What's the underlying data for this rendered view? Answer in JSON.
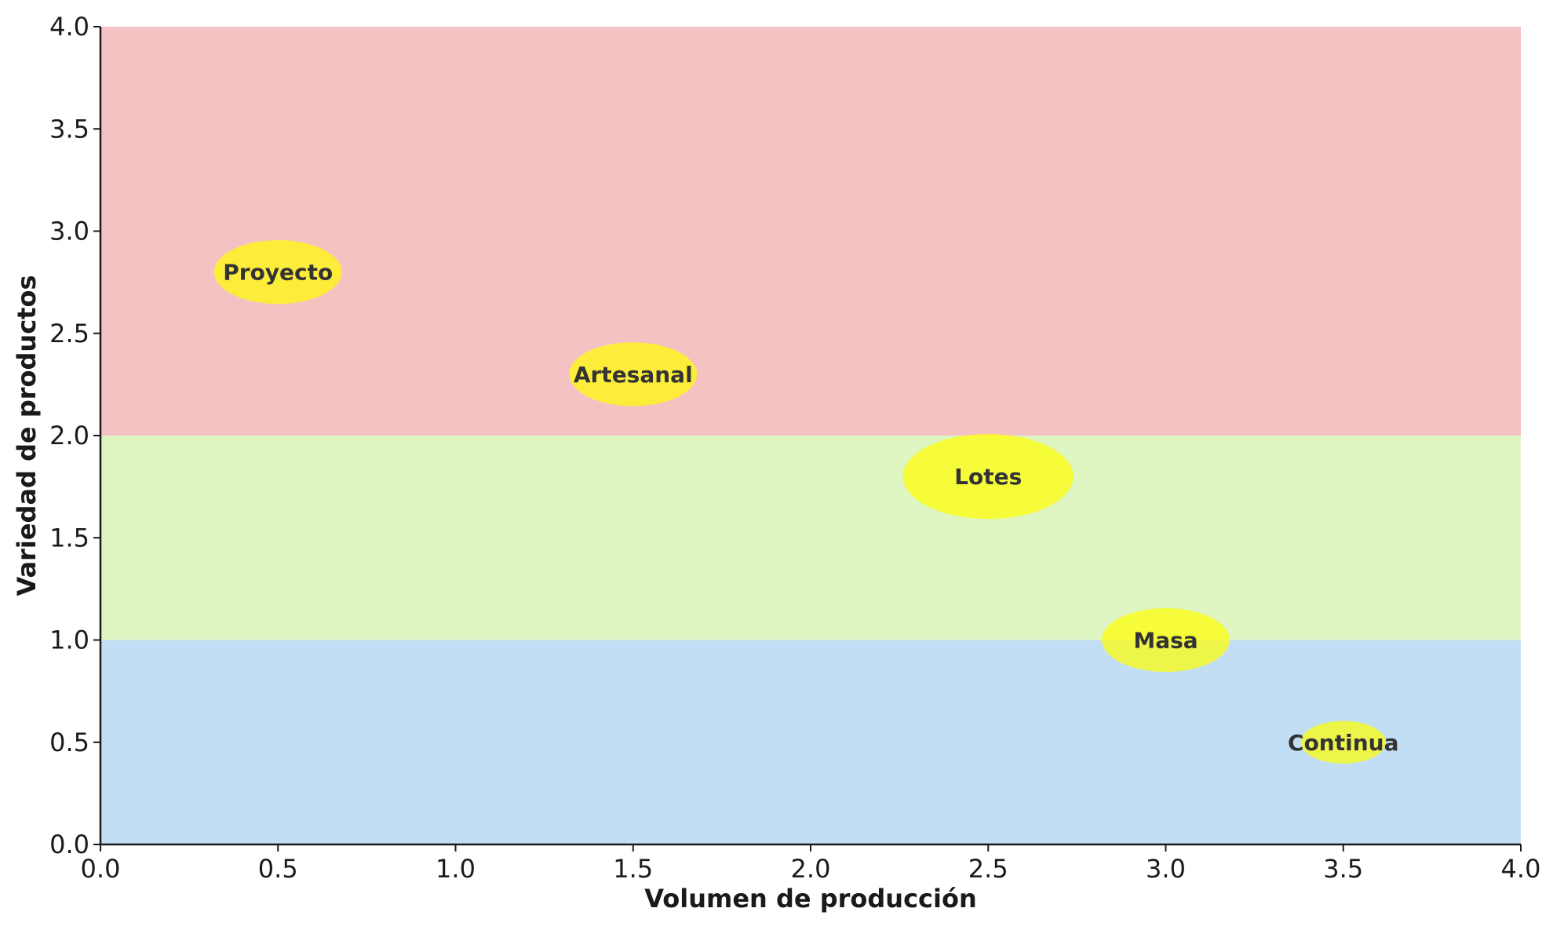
{
  "chart_data": {
    "type": "bubble",
    "xlabel": "Volumen de producción",
    "ylabel": "Variedad de productos",
    "xlim": [
      0,
      4
    ],
    "ylim": [
      0,
      4
    ],
    "xticks": [
      "0.0",
      "0.5",
      "1.0",
      "1.5",
      "2.0",
      "2.5",
      "3.0",
      "3.5",
      "4.0"
    ],
    "yticks": [
      "0.0",
      "0.5",
      "1.0",
      "1.5",
      "2.0",
      "2.5",
      "3.0",
      "3.5",
      "4.0"
    ],
    "grid": false,
    "bands": [
      {
        "y_from": 2.0,
        "y_to": 4.0,
        "color": "#f5c2c3"
      },
      {
        "y_from": 1.0,
        "y_to": 2.0,
        "color": "#dff5c2"
      },
      {
        "y_from": 0.0,
        "y_to": 1.0,
        "color": "#c2def5"
      }
    ],
    "bubble_color": "#ffff00",
    "points": [
      {
        "label": "Proyecto",
        "x": 0.5,
        "y": 2.8,
        "width": 0.6,
        "height": 0.6
      },
      {
        "label": "Artesanal",
        "x": 1.5,
        "y": 2.3,
        "width": 0.6,
        "height": 0.6
      },
      {
        "label": "Lotes",
        "x": 2.5,
        "y": 1.8,
        "width": 0.8,
        "height": 0.8
      },
      {
        "label": "Masa",
        "x": 3.0,
        "y": 1.0,
        "width": 0.6,
        "height": 0.6
      },
      {
        "label": "Continua",
        "x": 3.5,
        "y": 0.5,
        "width": 0.4,
        "height": 0.4
      }
    ]
  }
}
